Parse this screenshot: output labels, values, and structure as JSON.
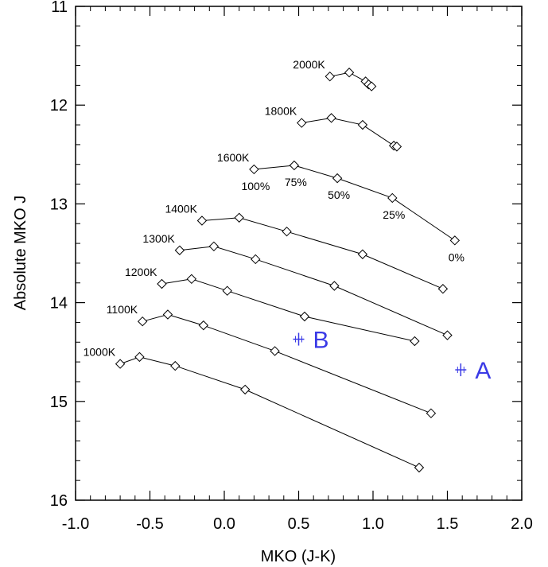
{
  "chart_data": {
    "type": "line",
    "xlabel": "MKO (J-K)",
    "ylabel": "Absolute MKO J",
    "xlim": [
      -1.0,
      2.0
    ],
    "ylim": [
      16.0,
      11.0
    ],
    "y_inverted": true,
    "grid": false,
    "x_ticks": [
      "-1.0",
      "-0.5",
      "0.0",
      "0.5",
      "1.0",
      "1.5",
      "2.0"
    ],
    "y_ticks": [
      "11",
      "12",
      "13",
      "14",
      "15",
      "16"
    ],
    "series": [
      {
        "name": "2000K",
        "x": [
          0.71,
          0.84,
          0.95,
          0.97,
          0.99
        ],
        "y": [
          11.71,
          11.67,
          11.76,
          11.79,
          11.81
        ]
      },
      {
        "name": "1800K",
        "x": [
          0.52,
          0.72,
          0.93,
          1.14,
          1.16
        ],
        "y": [
          12.18,
          12.13,
          12.2,
          12.41,
          12.42
        ]
      },
      {
        "name": "1600K",
        "x": [
          0.2,
          0.47,
          0.76,
          1.13,
          1.55
        ],
        "y": [
          12.65,
          12.61,
          12.74,
          12.94,
          13.37
        ]
      },
      {
        "name": "1400K",
        "x": [
          -0.15,
          0.1,
          0.42,
          0.93,
          1.47
        ],
        "y": [
          13.17,
          13.14,
          13.28,
          13.51,
          13.86
        ]
      },
      {
        "name": "1300K",
        "x": [
          -0.3,
          -0.07,
          0.21,
          0.74,
          1.5
        ],
        "y": [
          13.47,
          13.43,
          13.56,
          13.83,
          14.33
        ]
      },
      {
        "name": "1200K",
        "x": [
          -0.42,
          -0.22,
          0.02,
          0.54,
          1.28
        ],
        "y": [
          13.81,
          13.76,
          13.88,
          14.14,
          14.39
        ]
      },
      {
        "name": "1100K",
        "x": [
          -0.55,
          -0.38,
          -0.14,
          0.34,
          1.39
        ],
        "y": [
          14.19,
          14.12,
          14.23,
          14.49,
          15.12
        ]
      },
      {
        "name": "1000K",
        "x": [
          -0.7,
          -0.57,
          -0.33,
          0.14,
          1.31
        ],
        "y": [
          14.62,
          14.55,
          14.64,
          14.88,
          15.67
        ]
      }
    ],
    "annotations": [
      {
        "text": "100%",
        "x": 0.2,
        "y": 12.65
      },
      {
        "text": "75%",
        "x": 0.47,
        "y": 12.61
      },
      {
        "text": "50%",
        "x": 0.76,
        "y": 12.74
      },
      {
        "text": "25%",
        "x": 1.13,
        "y": 12.94
      },
      {
        "text": "0%",
        "x": 1.55,
        "y": 13.37
      }
    ],
    "markers": [
      {
        "name": "A",
        "x": 1.59,
        "y": 14.68,
        "color": "#3a3ae6"
      },
      {
        "name": "B",
        "x": 0.5,
        "y": 14.37,
        "color": "#3a3ae6"
      }
    ]
  }
}
